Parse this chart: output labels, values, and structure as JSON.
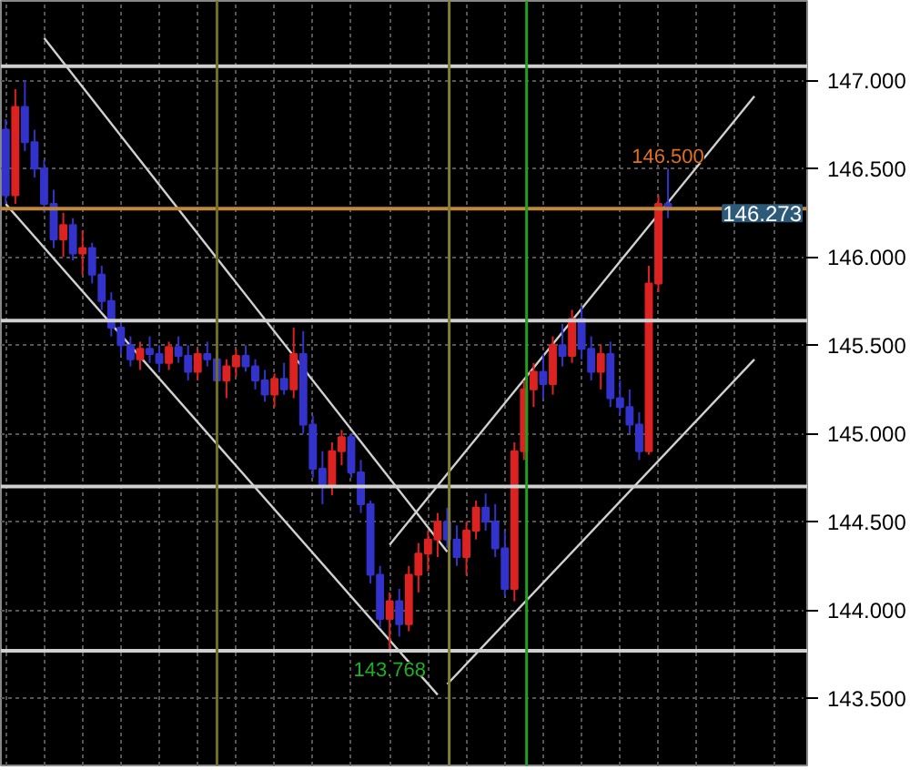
{
  "chart_data": {
    "type": "candlestick",
    "categories": [
      null,
      null,
      null,
      null,
      null,
      null,
      null,
      null,
      null,
      null,
      null,
      null,
      null,
      null,
      null,
      null,
      null,
      null,
      null,
      null,
      null,
      null,
      null,
      null,
      null,
      null,
      null,
      null,
      null,
      null,
      null,
      null,
      null,
      null,
      null,
      null,
      null,
      null,
      null,
      null,
      null,
      null,
      null,
      null,
      null,
      null,
      null,
      null,
      null,
      null,
      null,
      null,
      null,
      null,
      null,
      null,
      null,
      null,
      null,
      null,
      null,
      null,
      null,
      null,
      null,
      null,
      null,
      null,
      null,
      null,
      null,
      null,
      null,
      null,
      null,
      null,
      null,
      null,
      null,
      null,
      null,
      null,
      null,
      null
    ],
    "ohlc": [
      [
        146.72,
        146.78,
        146.3,
        146.35
      ],
      [
        146.35,
        146.95,
        146.3,
        146.85
      ],
      [
        146.85,
        147.0,
        146.6,
        146.65
      ],
      [
        146.65,
        146.72,
        146.45,
        146.5
      ],
      [
        146.5,
        146.55,
        146.25,
        146.3
      ],
      [
        146.3,
        146.38,
        146.05,
        146.1
      ],
      [
        146.1,
        146.25,
        146.0,
        146.18
      ],
      [
        146.18,
        146.22,
        145.98,
        146.02
      ],
      [
        146.02,
        146.15,
        145.9,
        146.05
      ],
      [
        146.05,
        146.08,
        145.85,
        145.9
      ],
      [
        145.9,
        145.95,
        145.7,
        145.75
      ],
      [
        145.75,
        145.8,
        145.55,
        145.6
      ],
      [
        145.6,
        145.65,
        145.45,
        145.5
      ],
      [
        145.5,
        145.55,
        145.38,
        145.42
      ],
      [
        145.42,
        145.52,
        145.36,
        145.48
      ],
      [
        145.48,
        145.55,
        145.4,
        145.45
      ],
      [
        145.45,
        145.5,
        145.35,
        145.4
      ],
      [
        145.4,
        145.52,
        145.36,
        145.49
      ],
      [
        145.49,
        145.55,
        145.4,
        145.44
      ],
      [
        145.44,
        145.5,
        145.3,
        145.35
      ],
      [
        145.35,
        145.48,
        145.3,
        145.45
      ],
      [
        145.45,
        145.52,
        145.38,
        145.42
      ],
      [
        145.42,
        145.46,
        145.28,
        145.3
      ],
      [
        145.3,
        145.42,
        145.2,
        145.38
      ],
      [
        145.38,
        145.48,
        145.32,
        145.44
      ],
      [
        145.44,
        145.5,
        145.35,
        145.38
      ],
      [
        145.38,
        145.42,
        145.25,
        145.3
      ],
      [
        145.3,
        145.36,
        145.18,
        145.22
      ],
      [
        145.22,
        145.34,
        145.15,
        145.31
      ],
      [
        145.31,
        145.4,
        145.22,
        145.25
      ],
      [
        145.25,
        145.6,
        145.2,
        145.45
      ],
      [
        145.45,
        145.58,
        145.0,
        145.05
      ],
      [
        145.05,
        145.1,
        144.75,
        144.8
      ],
      [
        144.8,
        144.9,
        144.6,
        144.7
      ],
      [
        144.7,
        144.95,
        144.65,
        144.9
      ],
      [
        144.9,
        145.02,
        144.82,
        144.98
      ],
      [
        144.98,
        145.0,
        144.75,
        144.78
      ],
      [
        144.78,
        144.85,
        144.55,
        144.6
      ],
      [
        144.6,
        144.62,
        144.15,
        144.2
      ],
      [
        144.2,
        144.25,
        143.9,
        143.95
      ],
      [
        143.95,
        144.1,
        143.768,
        144.05
      ],
      [
        144.05,
        144.12,
        143.85,
        143.92
      ],
      [
        143.92,
        144.25,
        143.88,
        144.2
      ],
      [
        144.2,
        144.38,
        144.1,
        144.32
      ],
      [
        144.32,
        144.45,
        144.22,
        144.4
      ],
      [
        144.4,
        144.55,
        144.3,
        144.5
      ],
      [
        144.5,
        144.58,
        144.35,
        144.4
      ],
      [
        144.4,
        144.48,
        144.25,
        144.3
      ],
      [
        144.3,
        144.5,
        144.2,
        144.45
      ],
      [
        144.45,
        144.62,
        144.4,
        144.58
      ],
      [
        144.58,
        144.66,
        144.45,
        144.5
      ],
      [
        144.5,
        144.6,
        144.3,
        144.35
      ],
      [
        144.35,
        144.45,
        144.08,
        144.12
      ],
      [
        144.12,
        144.95,
        144.05,
        144.9
      ],
      [
        144.9,
        145.3,
        144.85,
        145.25
      ],
      [
        145.25,
        145.4,
        145.15,
        145.35
      ],
      [
        145.35,
        145.45,
        145.2,
        145.28
      ],
      [
        145.28,
        145.55,
        145.22,
        145.5
      ],
      [
        145.5,
        145.62,
        145.38,
        145.44
      ],
      [
        145.44,
        145.7,
        145.4,
        145.65
      ],
      [
        145.65,
        145.72,
        145.42,
        145.48
      ],
      [
        145.48,
        145.55,
        145.3,
        145.35
      ],
      [
        145.35,
        145.5,
        145.25,
        145.45
      ],
      [
        145.45,
        145.52,
        145.15,
        145.2
      ],
      [
        145.2,
        145.3,
        145.1,
        145.15
      ],
      [
        145.15,
        145.25,
        145.0,
        145.05
      ],
      [
        145.05,
        145.12,
        144.85,
        144.9
      ],
      [
        144.9,
        145.95,
        144.88,
        145.85
      ],
      [
        145.85,
        146.35,
        145.8,
        146.3
      ],
      [
        146.3,
        146.5,
        146.22,
        146.273
      ],
      null,
      null,
      null,
      null,
      null,
      null,
      null,
      null,
      null,
      null,
      null,
      null,
      null,
      null
    ],
    "colors": [
      "#3333cc",
      "#dd2222",
      "#3333cc",
      "#3333cc",
      "#3333cc",
      "#3333cc",
      "#dd2222",
      "#3333cc",
      "#dd2222",
      "#3333cc",
      "#3333cc",
      "#3333cc",
      "#3333cc",
      "#3333cc",
      "#dd2222",
      "#3333cc",
      "#3333cc",
      "#dd2222",
      "#3333cc",
      "#3333cc",
      "#dd2222",
      "#3333cc",
      "#3333cc",
      "#dd2222",
      "#dd2222",
      "#3333cc",
      "#3333cc",
      "#3333cc",
      "#dd2222",
      "#3333cc",
      "#dd2222",
      "#3333cc",
      "#3333cc",
      "#3333cc",
      "#dd2222",
      "#dd2222",
      "#3333cc",
      "#3333cc",
      "#3333cc",
      "#3333cc",
      "#dd2222",
      "#3333cc",
      "#dd2222",
      "#dd2222",
      "#dd2222",
      "#dd2222",
      "#3333cc",
      "#3333cc",
      "#dd2222",
      "#dd2222",
      "#3333cc",
      "#3333cc",
      "#3333cc",
      "#dd2222",
      "#dd2222",
      "#dd2222",
      "#3333cc",
      "#dd2222",
      "#3333cc",
      "#dd2222",
      "#3333cc",
      "#3333cc",
      "#dd2222",
      "#3333cc",
      "#3333cc",
      "#3333cc",
      "#3333cc",
      "#dd2222",
      "#dd2222",
      "#3333cc",
      null,
      null,
      null,
      null,
      null,
      null,
      null,
      null,
      null,
      null,
      null,
      null,
      null,
      null
    ],
    "series": [
      {
        "type": "line",
        "color": "#d0d0d0",
        "values": [
          null,
          null,
          null,
          null,
          147.24,
          null,
          null,
          null,
          null,
          null,
          null,
          null,
          null,
          null,
          null,
          null,
          null,
          null,
          null,
          null,
          null,
          null,
          null,
          null,
          null,
          null,
          null,
          null,
          null,
          null,
          null,
          null,
          null,
          null,
          null,
          null,
          null,
          null,
          null,
          null,
          null,
          null,
          null,
          null,
          null,
          null,
          144.33,
          null,
          null,
          null,
          null,
          null,
          null,
          null,
          null,
          null,
          null,
          null,
          null,
          null,
          null,
          null,
          null,
          null,
          null,
          null,
          null,
          null,
          null,
          null,
          null,
          null,
          null,
          null,
          null,
          null,
          null,
          null,
          null,
          null,
          null,
          null,
          null,
          null
        ]
      },
      {
        "type": "line",
        "color": "#d0d0d0",
        "values": [
          146.3,
          null,
          null,
          null,
          null,
          null,
          null,
          null,
          null,
          null,
          null,
          null,
          null,
          null,
          null,
          null,
          null,
          null,
          null,
          null,
          null,
          null,
          null,
          null,
          null,
          null,
          null,
          null,
          null,
          null,
          null,
          null,
          null,
          null,
          null,
          null,
          null,
          null,
          null,
          null,
          null,
          null,
          null,
          null,
          null,
          143.52,
          null,
          null,
          null,
          null,
          null,
          null,
          null,
          null,
          null,
          null,
          null,
          null,
          null,
          null,
          null,
          null,
          null,
          null,
          null,
          null,
          null,
          null,
          null,
          null,
          null,
          null,
          null,
          null,
          null,
          null,
          null,
          null,
          null,
          null,
          null,
          null,
          null,
          null
        ]
      },
      {
        "type": "line",
        "color": "#d0d0d0",
        "values": [
          null,
          null,
          null,
          null,
          null,
          null,
          null,
          null,
          null,
          null,
          null,
          null,
          null,
          null,
          null,
          null,
          null,
          null,
          null,
          null,
          null,
          null,
          null,
          null,
          null,
          null,
          null,
          null,
          null,
          null,
          null,
          null,
          null,
          null,
          null,
          null,
          null,
          null,
          null,
          null,
          144.37,
          null,
          null,
          null,
          null,
          null,
          null,
          null,
          null,
          null,
          null,
          null,
          null,
          null,
          null,
          null,
          null,
          null,
          null,
          null,
          null,
          null,
          null,
          null,
          null,
          null,
          null,
          null,
          null,
          null,
          null,
          null,
          null,
          null,
          null,
          null,
          null,
          null,
          146.91,
          null,
          null,
          null,
          null,
          null
        ]
      },
      {
        "type": "line",
        "color": "#d0d0d0",
        "values": [
          null,
          null,
          null,
          null,
          null,
          null,
          null,
          null,
          null,
          null,
          null,
          null,
          null,
          null,
          null,
          null,
          null,
          null,
          null,
          null,
          null,
          null,
          null,
          null,
          null,
          null,
          null,
          null,
          null,
          null,
          null,
          null,
          null,
          null,
          null,
          null,
          null,
          null,
          null,
          null,
          null,
          null,
          null,
          null,
          null,
          null,
          143.58,
          null,
          null,
          null,
          null,
          null,
          null,
          null,
          null,
          null,
          null,
          null,
          null,
          null,
          null,
          null,
          null,
          null,
          null,
          null,
          null,
          null,
          null,
          null,
          null,
          null,
          null,
          null,
          null,
          null,
          null,
          null,
          145.42,
          null,
          null,
          null,
          null,
          null
        ]
      }
    ],
    "ylim": [
      143.12,
      147.45
    ],
    "yticks": [
      {
        "value": 143.5,
        "label": "143.500"
      },
      {
        "value": 144,
        "label": "144.000"
      },
      {
        "value": 144.5,
        "label": "144.500"
      },
      {
        "value": 145,
        "label": "145.000"
      },
      {
        "value": 145.5,
        "label": "145.500"
      },
      {
        "value": 146,
        "label": "146.000"
      },
      {
        "value": 146.5,
        "label": "146.500"
      },
      {
        "value": 147,
        "label": "147.000"
      }
    ],
    "ref_lines": [
      {
        "axis": "y",
        "value": 147.08,
        "color": "#d0d0d0"
      },
      {
        "axis": "y",
        "value": 145.64,
        "color": "#d0d0d0"
      },
      {
        "axis": "y",
        "value": 144.7,
        "color": "#d0d0d0"
      },
      {
        "axis": "y",
        "value": 143.77,
        "color": "#d0d0d0"
      },
      {
        "axis": "y",
        "value": 146.273,
        "label": "146.273",
        "color": "#c08838"
      }
    ],
    "annotations": [
      {
        "text": "146.500",
        "y": 146.5
      },
      {
        "text": "143.768",
        "y": 143.768
      }
    ],
    "grid": true,
    "tick_labels": "y"
  }
}
